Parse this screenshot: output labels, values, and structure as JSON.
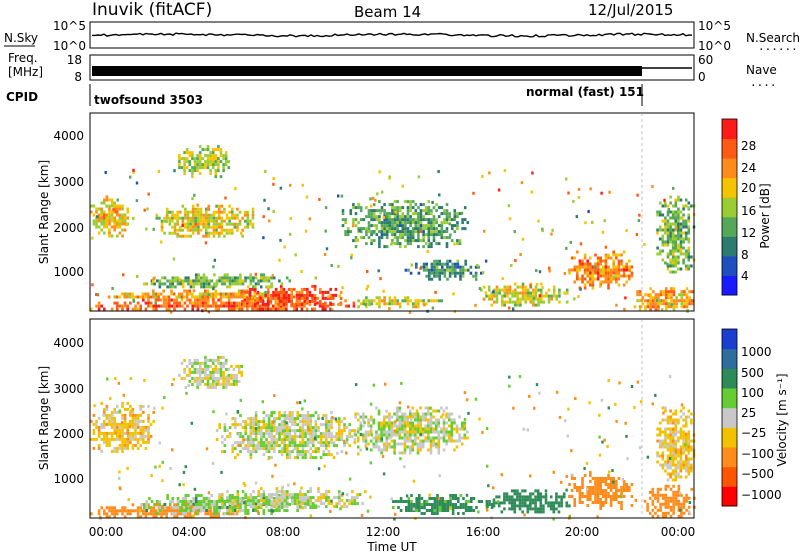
{
  "header": {
    "station": "Inuvik (fitACF)",
    "beam": "Beam 14",
    "date": "12/Jul/2015"
  },
  "top_panel": {
    "left_label": "N.Sky",
    "left_ticks": [
      "10^5",
      "10^0"
    ],
    "right_ticks": [
      "10^5",
      "10^0"
    ],
    "right_label": "N.Search",
    "right_dots": "........"
  },
  "freq_panel": {
    "left_label_1": "Freq.",
    "left_label_2": "[MHz]",
    "left_ticks": [
      "18",
      "8"
    ],
    "right_ticks": [
      "60",
      "0"
    ],
    "right_label": "Nave",
    "right_dots": "....",
    "switch_time": 21.8
  },
  "cpid": {
    "label": "CPID",
    "left_mode": "twofsound 3503",
    "right_mode": "normal (fast) 151"
  },
  "axes": {
    "ylabel": "Slant Range [km]",
    "yticks": [
      "4000",
      "3000",
      "2000",
      "1000"
    ],
    "xticks": [
      "00:00",
      "04:00",
      "08:00",
      "12:00",
      "16:00",
      "20:00",
      "00:00"
    ],
    "xlabel": "Time UT"
  },
  "power_colorbar": {
    "label": "Power [dB]",
    "ticks": [
      "28",
      "24",
      "20",
      "16",
      "12",
      "8",
      "4"
    ],
    "colors": [
      "#1a1aff",
      "#1f4fbf",
      "#2d7a6e",
      "#55a85a",
      "#9acd32",
      "#f5c400",
      "#ff8c1a",
      "#ff5a14",
      "#ff1a1a"
    ]
  },
  "velocity_colorbar": {
    "label": "Velocity [m s⁻¹]",
    "ticks": [
      "1000",
      "500",
      "100",
      "25",
      "−25",
      "−100",
      "−500",
      "−1000"
    ],
    "colors": [
      "#1a3fd0",
      "#2d6e9e",
      "#2e8b57",
      "#66cc33",
      "#c8c8c8",
      "#f2c200",
      "#ff8c1a",
      "#ff5500",
      "#ff0000"
    ]
  },
  "chart_data": {
    "type": "heatmap",
    "time_range_hours": [
      0,
      24
    ],
    "range_km": [
      180,
      4500
    ],
    "power_blobs": [
      {
        "t0": 0.0,
        "t1": 10.5,
        "r0": 200,
        "r1": 450,
        "v": 26
      },
      {
        "t0": 0.5,
        "t1": 9.0,
        "r0": 450,
        "r1": 650,
        "v": 22
      },
      {
        "t0": 6.0,
        "t1": 10.0,
        "r0": 300,
        "r1": 750,
        "v": 28
      },
      {
        "t0": 2.0,
        "t1": 8.0,
        "r0": 700,
        "r1": 1000,
        "v": 14
      },
      {
        "t0": 0.0,
        "t1": 1.5,
        "r0": 1800,
        "r1": 2700,
        "v": 20
      },
      {
        "t0": 2.5,
        "t1": 6.5,
        "r0": 1800,
        "r1": 2500,
        "v": 18
      },
      {
        "t0": 3.5,
        "t1": 5.5,
        "r0": 3100,
        "r1": 3800,
        "v": 16
      },
      {
        "t0": 10.0,
        "t1": 14.0,
        "r0": 300,
        "r1": 500,
        "v": 18
      },
      {
        "t0": 10.0,
        "t1": 15.0,
        "r0": 1600,
        "r1": 2600,
        "v": 12
      },
      {
        "t0": 12.5,
        "t1": 15.5,
        "r0": 900,
        "r1": 1300,
        "v": 10
      },
      {
        "t0": 15.5,
        "t1": 19.0,
        "r0": 300,
        "r1": 800,
        "v": 18
      },
      {
        "t0": 19.0,
        "t1": 21.5,
        "r0": 700,
        "r1": 1500,
        "v": 24
      },
      {
        "t0": 21.5,
        "t1": 24.0,
        "r0": 200,
        "r1": 700,
        "v": 22
      },
      {
        "t0": 22.5,
        "t1": 24.0,
        "r0": 1000,
        "r1": 2700,
        "v": 14
      }
    ],
    "velocity_blobs": [
      {
        "t0": 0.0,
        "t1": 6.0,
        "r0": 200,
        "r1": 500,
        "v": -200
      },
      {
        "t0": 2.0,
        "t1": 9.0,
        "r0": 300,
        "r1": 700,
        "v": 50
      },
      {
        "t0": 5.0,
        "t1": 11.0,
        "r0": 400,
        "r1": 850,
        "v": 0
      },
      {
        "t0": 5.0,
        "t1": 10.5,
        "r0": 1500,
        "r1": 2500,
        "v": 0
      },
      {
        "t0": 3.5,
        "t1": 6.0,
        "r0": 3000,
        "r1": 3700,
        "v": 0
      },
      {
        "t0": 0.0,
        "t1": 2.5,
        "r0": 1600,
        "r1": 2700,
        "v": -60
      },
      {
        "t0": 10.5,
        "t1": 15.0,
        "r0": 1600,
        "r1": 2600,
        "v": 0
      },
      {
        "t0": 12.0,
        "t1": 16.0,
        "r0": 300,
        "r1": 700,
        "v": 150
      },
      {
        "t0": 16.0,
        "t1": 19.0,
        "r0": 300,
        "r1": 800,
        "v": 300
      },
      {
        "t0": 19.0,
        "t1": 21.5,
        "r0": 400,
        "r1": 1200,
        "v": -300
      },
      {
        "t0": 22.0,
        "t1": 24.0,
        "r0": 200,
        "r1": 900,
        "v": -400
      },
      {
        "t0": 22.5,
        "t1": 24.0,
        "r0": 1000,
        "r1": 2600,
        "v": -50
      }
    ]
  }
}
